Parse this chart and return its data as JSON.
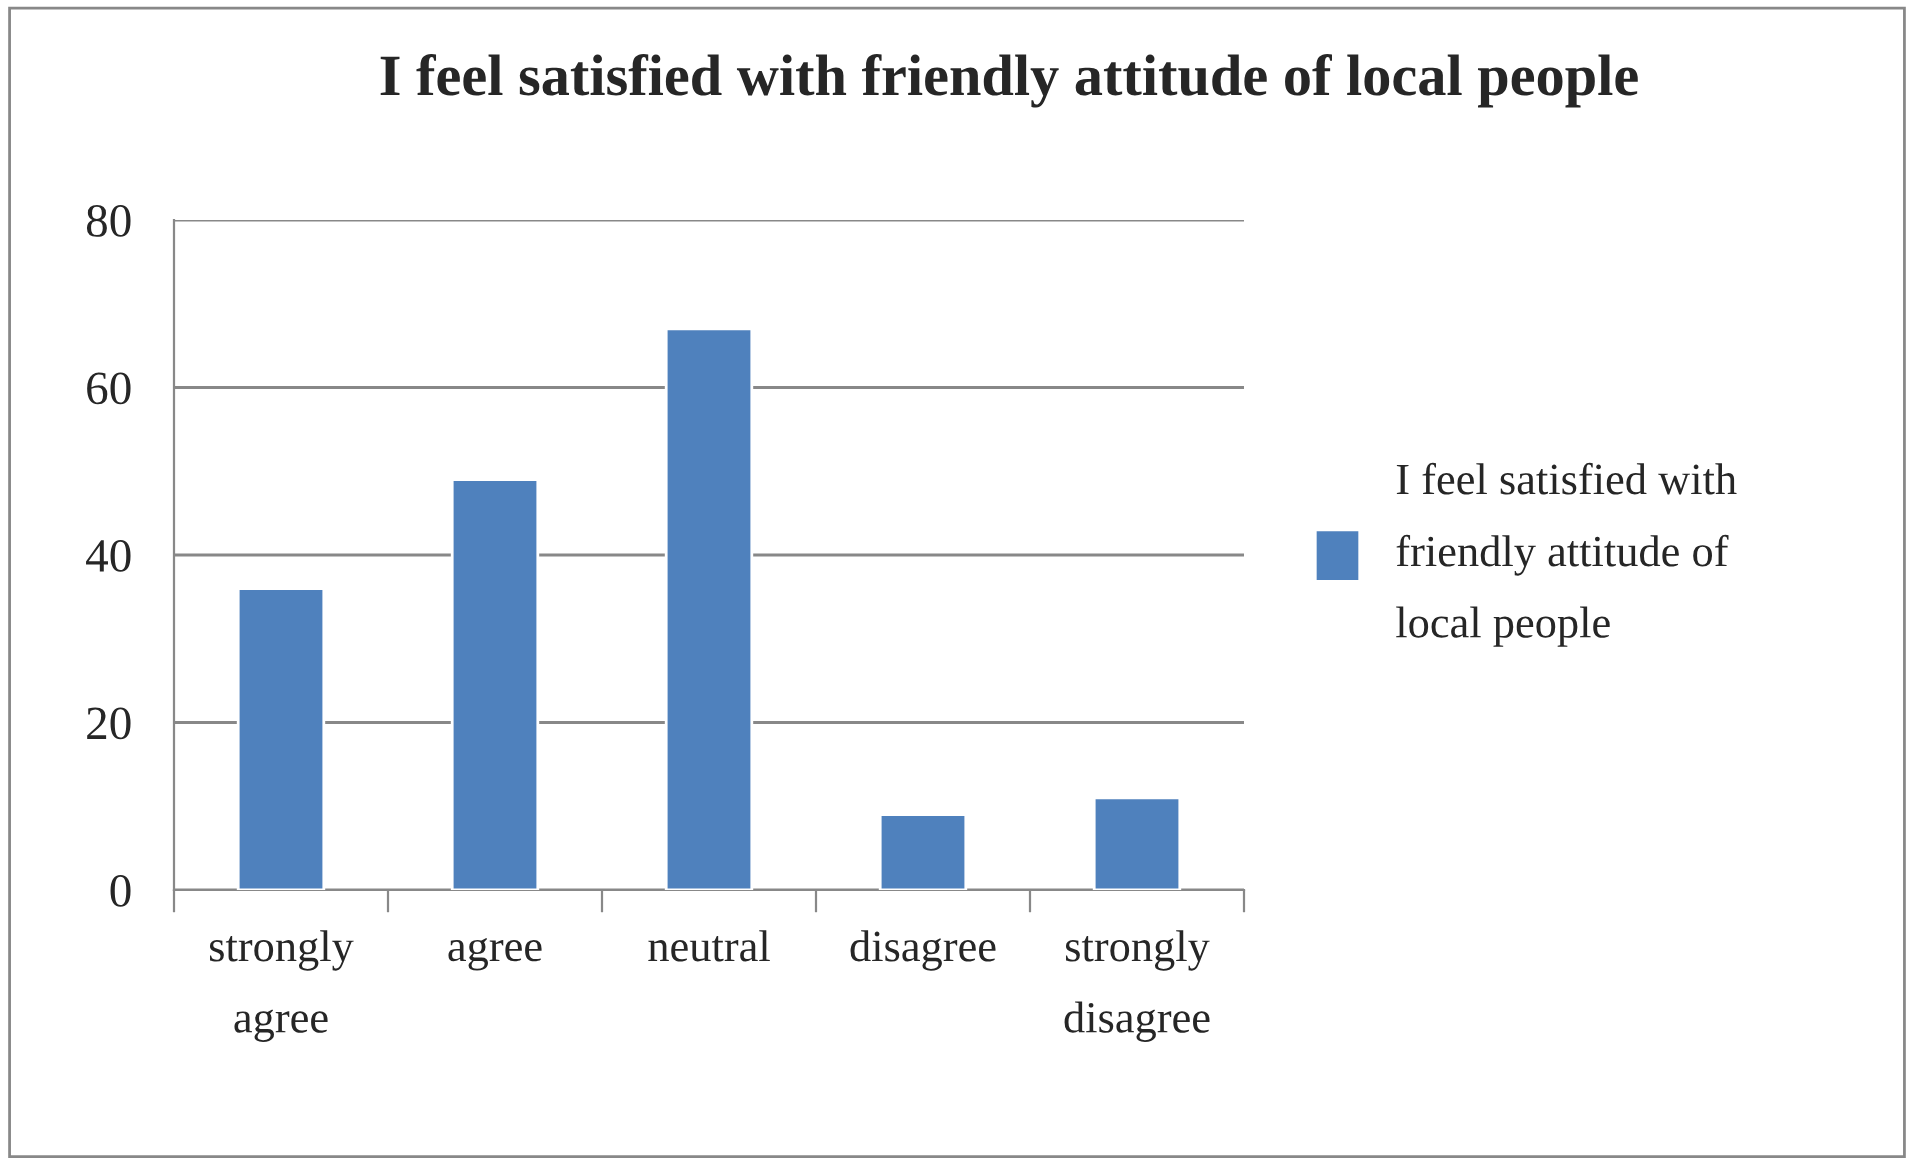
{
  "chart_data": {
    "type": "bar",
    "title": "I feel satisfied with friendly attitude of local people",
    "categories": [
      "strongly agree",
      "agree",
      "neutral",
      "disagree",
      "strongly disagree"
    ],
    "series": [
      {
        "name": "I feel satisfied with friendly attitude of local people",
        "color": "#4f81bd",
        "values": [
          36,
          49,
          67,
          9,
          11
        ]
      }
    ],
    "ylim": [
      0,
      80
    ],
    "yticks": [
      0,
      20,
      40,
      60,
      80
    ],
    "grid": "y",
    "legend": "right"
  }
}
